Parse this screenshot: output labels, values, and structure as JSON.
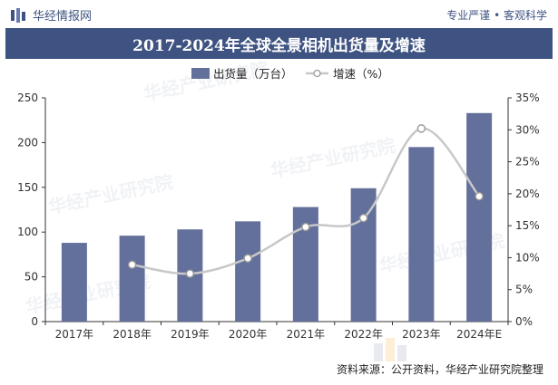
{
  "header": {
    "brand": "华经情报网",
    "tagline": "专业严谨 • 客观科学"
  },
  "title": "2017-2024年全球全景相机出货量及增速",
  "footer": {
    "source": "资料来源：公开资料，华经产业研究院整理"
  },
  "watermark": {
    "text": "华经产业研究院",
    "url": "www.huaon.com"
  },
  "colors": {
    "bar": "#63709b",
    "line": "#c8c8c8",
    "marker_fill": "#ffffff",
    "marker_stroke": "#9a9a9a",
    "title_bg": "#3f5382",
    "axis": "#333333"
  },
  "chart_data": {
    "type": "bar",
    "categories": [
      "2017年",
      "2018年",
      "2019年",
      "2020年",
      "2021年",
      "2022年",
      "2023年",
      "2024年E"
    ],
    "series": [
      {
        "name": "出货量（万台）",
        "type": "bar",
        "axis": "left",
        "values": [
          88,
          96,
          103,
          112,
          128,
          149,
          195,
          233
        ]
      },
      {
        "name": "增速（%）",
        "type": "line",
        "axis": "right",
        "values": [
          null,
          8.9,
          7.5,
          9.9,
          14.8,
          16.2,
          30.2,
          19.6
        ]
      }
    ],
    "y_left": {
      "min": 0,
      "max": 250,
      "ticks": [
        "0",
        "50",
        "100",
        "150",
        "200",
        "250"
      ]
    },
    "y_right": {
      "min": 0,
      "max": 35,
      "ticks": [
        "0%",
        "5%",
        "10%",
        "15%",
        "20%",
        "25%",
        "30%",
        "35%"
      ]
    },
    "legend_position": "top",
    "grid": false
  }
}
